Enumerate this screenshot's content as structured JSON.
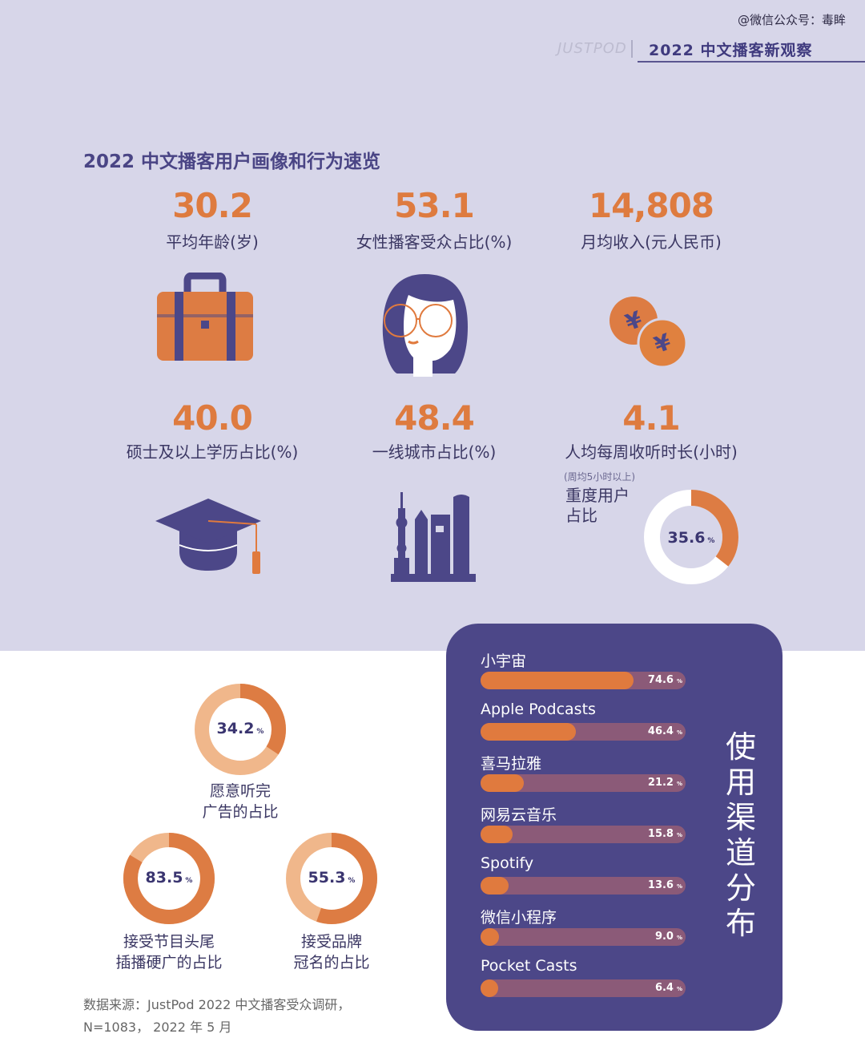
{
  "header": {
    "watermark": "@微信公众号：毒眸",
    "brand": "JUSTPOD",
    "report_title": "2022 中文播客新观察"
  },
  "section_title": "2022 中文播客用户画像和行为速览",
  "stats": [
    {
      "value": "30.2",
      "label": "平均年龄(岁)",
      "icon": "briefcase-icon"
    },
    {
      "value": "53.1",
      "label": "女性播客受众占比(%)",
      "icon": "woman-face-icon"
    },
    {
      "value": "14,808",
      "label": "月均收入(元人民币)",
      "icon": "yuan-coins-icon"
    },
    {
      "value": "40.0",
      "label": "硕士及以上学历占比(%)",
      "icon": "graduation-cap-icon"
    },
    {
      "value": "48.4",
      "label": "一线城市占比(%)",
      "icon": "city-skyline-icon"
    },
    {
      "value": "4.1",
      "label": "人均每周收听时长(小时)",
      "icon": "clock-icon"
    }
  ],
  "heavy_users": {
    "note": "(周均5小时以上)",
    "label": "重度用户占比",
    "value": "35.6",
    "unit": "%"
  },
  "ad_rings": [
    {
      "value": "34.2",
      "unit": "%",
      "caption": [
        "愿意听完",
        "广告的占比"
      ]
    },
    {
      "value": "83.5",
      "unit": "%",
      "caption": [
        "接受节目头尾",
        "插播硬广的占比"
      ]
    },
    {
      "value": "55.3",
      "unit": "%",
      "caption": [
        "接受品牌",
        "冠名的占比"
      ]
    }
  ],
  "source": [
    "数据来源：JustPod 2022 中文播客受众调研，",
    "N=1083， 2022 年 5 月"
  ],
  "channels_title": "使用渠道分布",
  "colors": {
    "accent": "#e07a3e",
    "navy": "#4c4788",
    "bg": "#d7d6e9",
    "track": "#8b5a78"
  },
  "chart_data": {
    "type": "bar",
    "categories": [
      "小宇宙",
      "Apple Podcasts",
      "喜马拉雅",
      "网易云音乐",
      "Spotify",
      "微信小程序",
      "Pocket Casts"
    ],
    "values": [
      74.6,
      46.4,
      21.2,
      15.8,
      13.6,
      9.0,
      6.4
    ],
    "unit": "%",
    "title": "使用渠道分布",
    "xlim": [
      0,
      100
    ]
  }
}
